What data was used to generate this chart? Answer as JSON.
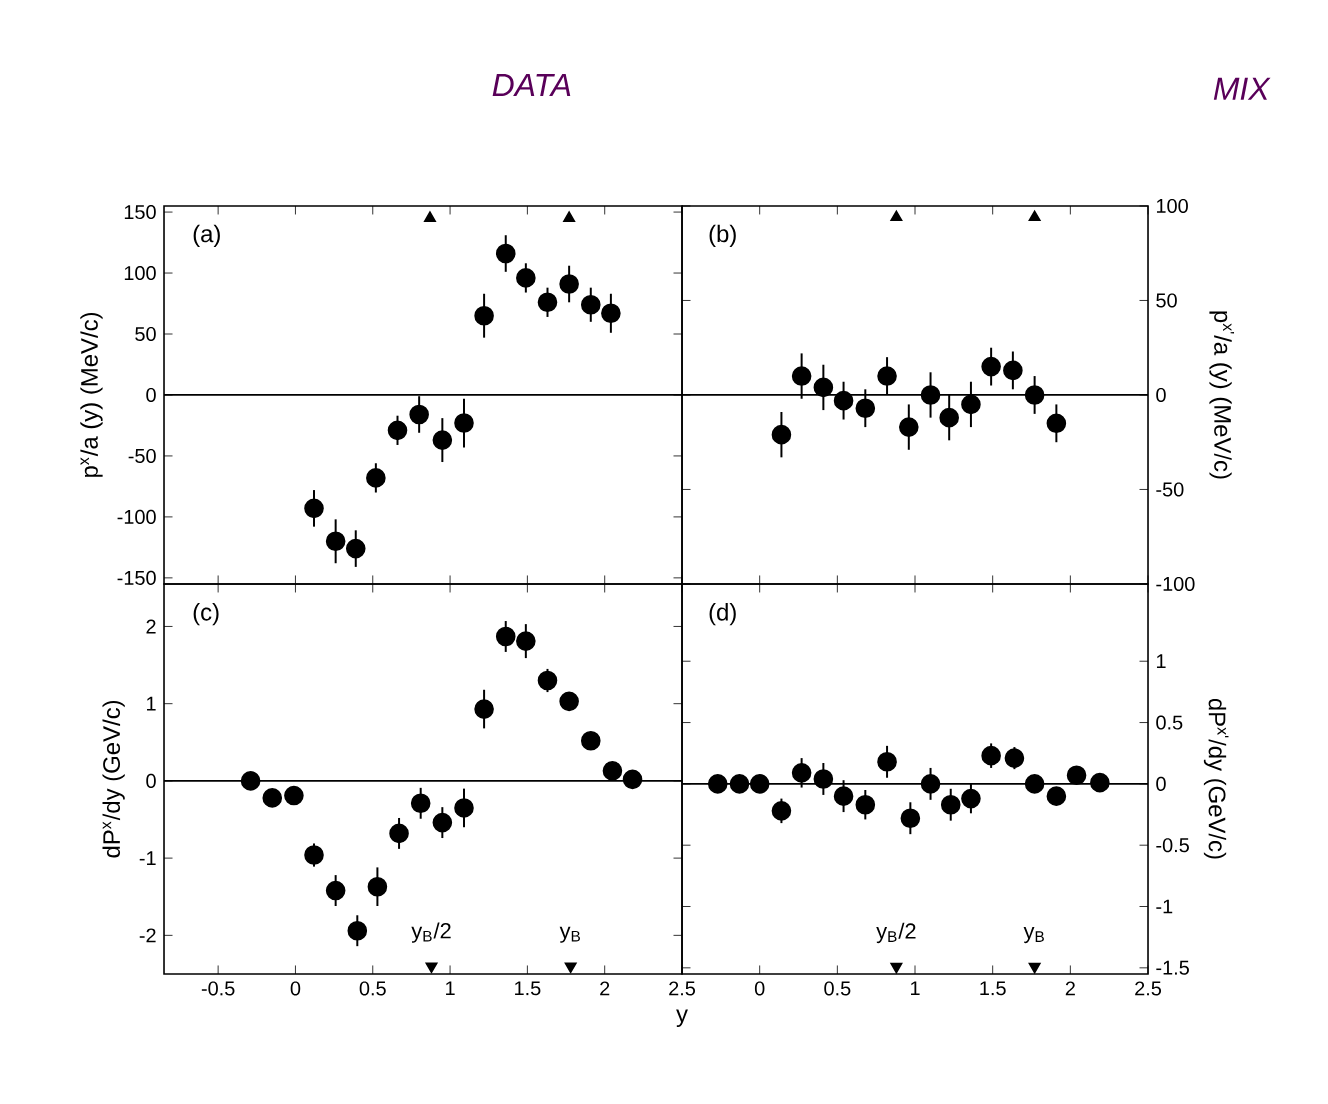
{
  "chart_data": [
    {
      "type": "scatter",
      "title": "(a)",
      "ylabel": "p$^{x}$/a (y) (MeV/c)",
      "xlim": [
        -0.85,
        2.5
      ],
      "ylim": [
        -155,
        155
      ],
      "xticks": [
        -0.5,
        0,
        0.5,
        1,
        1.5,
        2,
        2.5
      ],
      "yticks": [
        -150,
        -100,
        -50,
        0,
        50,
        100,
        150
      ],
      "tick_labels": "y",
      "grid": false,
      "x": [
        0.12,
        0.26,
        0.39,
        0.52,
        0.66,
        0.8,
        0.95,
        1.09,
        1.22,
        1.36,
        1.49,
        1.63,
        1.77,
        1.91,
        2.04
      ],
      "series": [
        {
          "color": "#000000",
          "marker": "circle",
          "values": [
            -93,
            -120,
            -126,
            -68,
            -29,
            -16,
            -37,
            -23,
            65,
            116,
            96,
            76,
            91,
            74,
            67
          ],
          "errors": [
            15,
            18,
            15,
            12,
            12,
            15,
            18,
            20,
            18,
            15,
            12,
            12,
            15,
            14,
            16
          ]
        },
        {
          "color": "#000000",
          "marker": "triangle",
          "x": [
            0.87,
            1.77
          ],
          "values": [
            145,
            145
          ]
        }
      ],
      "ref_lines": [
        {
          "axis": "y",
          "value": 0
        }
      ],
      "annotations": [
        "DATA"
      ]
    },
    {
      "type": "scatter",
      "title": "(b)",
      "ylabel": "p$^{x'}$/a (y) (MeV/c)",
      "xlim": [
        -0.5,
        2.5
      ],
      "ylim": [
        -100,
        100
      ],
      "xticks": [
        0,
        0.5,
        1,
        1.5,
        2,
        2.5
      ],
      "yticks": [
        -100,
        -50,
        0,
        50,
        100
      ],
      "tick_labels": "y",
      "grid": false,
      "x": [
        0.14,
        0.27,
        0.41,
        0.54,
        0.68,
        0.82,
        0.96,
        1.1,
        1.22,
        1.36,
        1.49,
        1.63,
        1.77,
        1.91
      ],
      "series": [
        {
          "color": "#000000",
          "marker": "circle",
          "values": [
            -21,
            10,
            4,
            -3,
            -7,
            10,
            -17,
            0,
            -12,
            -5,
            15,
            13,
            0,
            -15
          ],
          "errors": [
            12,
            12,
            12,
            10,
            10,
            10,
            12,
            12,
            12,
            12,
            10,
            10,
            10,
            10
          ]
        },
        {
          "color": "#000000",
          "marker": "triangle",
          "x": [
            0.88,
            1.77
          ],
          "values": [
            94,
            94
          ]
        }
      ],
      "ref_lines": [
        {
          "axis": "y",
          "value": 0
        }
      ],
      "annotations": [
        "MIX"
      ]
    },
    {
      "type": "scatter",
      "title": "(c)",
      "ylabel": "dP$^{x}$/dy (GeV/c)",
      "xlabel": "y",
      "xlim": [
        -0.85,
        2.5
      ],
      "ylim": [
        -2.5,
        2.55
      ],
      "xticks": [
        -0.5,
        0,
        0.5,
        1,
        1.5,
        2,
        2.5
      ],
      "yticks": [
        -2,
        -1,
        0,
        1,
        2
      ],
      "grid": false,
      "x": [
        -0.29,
        -0.15,
        -0.01,
        0.12,
        0.26,
        0.4,
        0.53,
        0.67,
        0.81,
        0.95,
        1.09,
        1.22,
        1.36,
        1.49,
        1.63,
        1.77,
        1.91,
        2.05,
        2.18
      ],
      "series": [
        {
          "color": "#000000",
          "marker": "circle",
          "values": [
            0.0,
            -0.22,
            -0.19,
            -0.96,
            -1.42,
            -1.94,
            -1.37,
            -0.68,
            -0.29,
            -0.54,
            -0.35,
            0.93,
            1.87,
            1.81,
            1.3,
            1.03,
            0.52,
            0.13,
            0.02
          ],
          "errors": [
            0.05,
            0.08,
            0.08,
            0.15,
            0.2,
            0.2,
            0.25,
            0.2,
            0.2,
            0.2,
            0.25,
            0.25,
            0.2,
            0.22,
            0.15,
            0.12,
            0.08,
            0.08,
            0.05
          ]
        },
        {
          "color": "#000000",
          "marker": "triangle",
          "x": [
            0.88,
            1.78
          ],
          "values": [
            -2.4,
            -2.4
          ]
        }
      ],
      "ref_lines": [
        {
          "axis": "y",
          "value": 0
        }
      ],
      "annotations": [
        {
          "text": "y$_{B}$/2",
          "x": 0.88,
          "y": -2.4
        },
        {
          "text": "y$_{B}$",
          "x": 1.78,
          "y": -2.4
        }
      ]
    },
    {
      "type": "scatter",
      "title": "(d)",
      "ylabel": "dP$^{x'}$/dy (GeV/c)",
      "xlim": [
        -0.5,
        2.5
      ],
      "ylim": [
        -1.55,
        1.63
      ],
      "xticks": [
        0,
        0.5,
        1,
        1.5,
        2,
        2.5
      ],
      "yticks": [
        -1.5,
        -1,
        -0.5,
        0,
        0.5,
        1
      ],
      "grid": false,
      "x": [
        -0.27,
        -0.13,
        0.0,
        0.14,
        0.27,
        0.41,
        0.54,
        0.68,
        0.82,
        0.97,
        1.1,
        1.23,
        1.36,
        1.49,
        1.64,
        1.77,
        1.91,
        2.04,
        2.19
      ],
      "series": [
        {
          "color": "#000000",
          "marker": "circle",
          "values": [
            0,
            0,
            0,
            -0.22,
            0.09,
            0.04,
            -0.1,
            -0.17,
            0.18,
            -0.28,
            0,
            -0.17,
            -0.12,
            0.23,
            0.21,
            0,
            -0.1,
            0.07,
            0.01
          ],
          "errors": [
            0.03,
            0.03,
            0.03,
            0.1,
            0.12,
            0.13,
            0.13,
            0.12,
            0.13,
            0.13,
            0.13,
            0.13,
            0.12,
            0.1,
            0.09,
            0.07,
            0.05,
            0.04,
            0.03
          ]
        },
        {
          "color": "#000000",
          "marker": "triangle",
          "x": [
            0.88,
            1.77
          ],
          "values": [
            -1.49,
            -1.49
          ]
        }
      ],
      "ref_lines": [
        {
          "axis": "y",
          "value": 0
        }
      ],
      "annotations": [
        {
          "text": "y$_{B}$/2",
          "x": 0.88,
          "y": -1.49
        },
        {
          "text": "y$_{B}$",
          "x": 1.77,
          "y": -1.49
        }
      ]
    }
  ]
}
